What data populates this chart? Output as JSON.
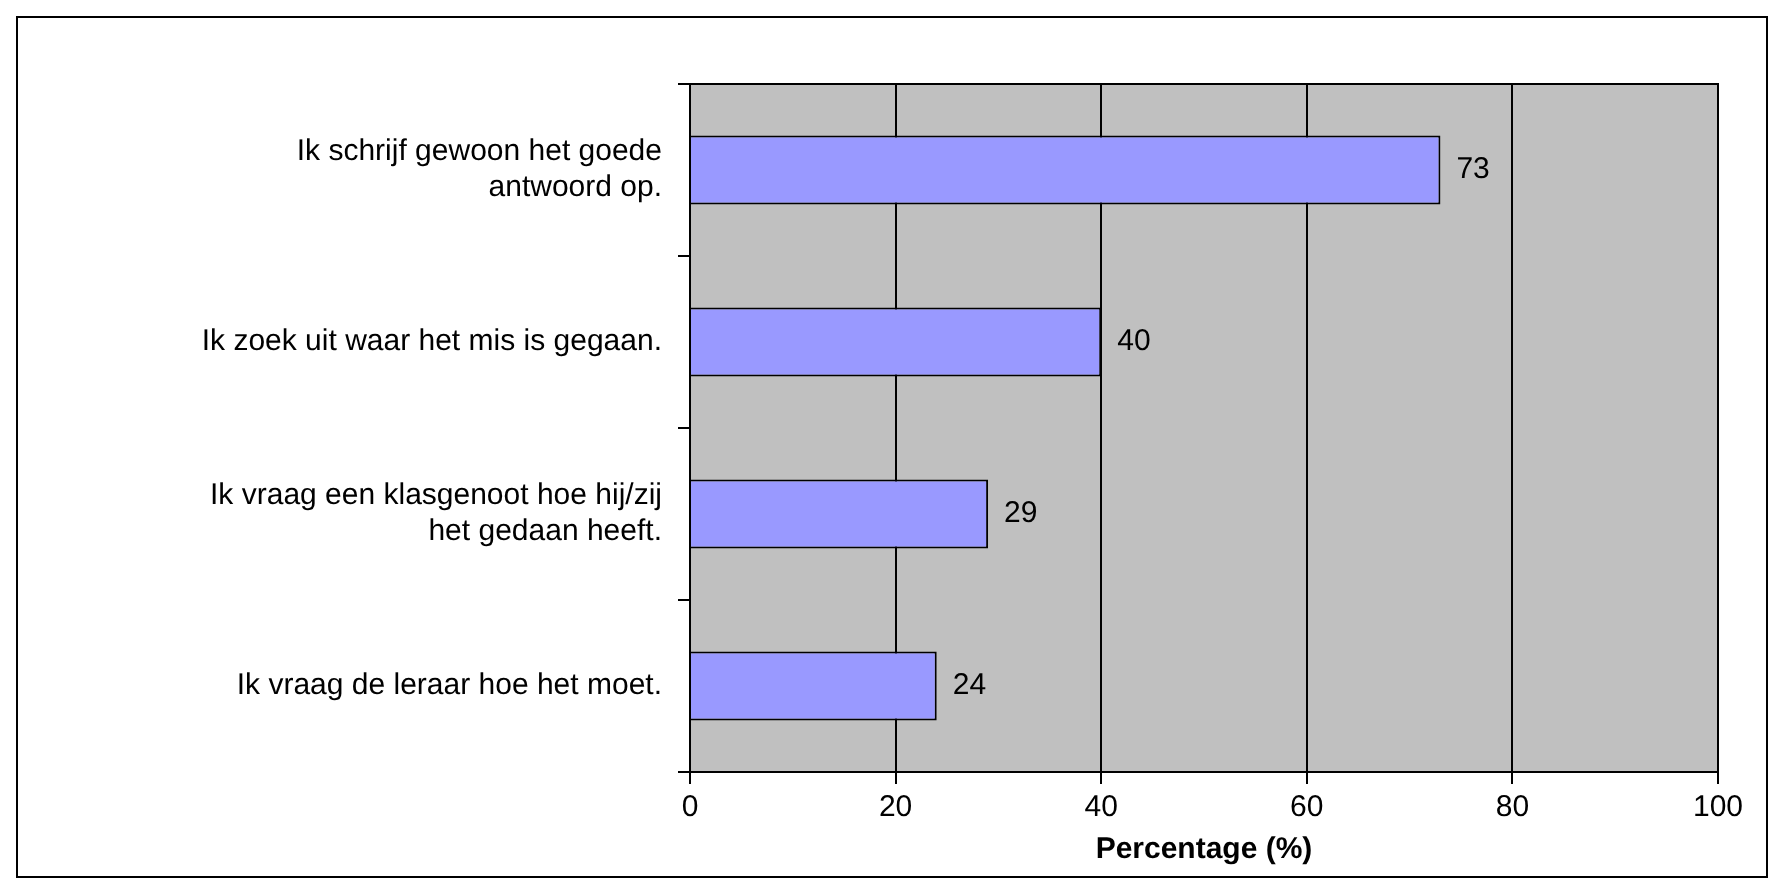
{
  "chart_data": {
    "type": "bar",
    "orientation": "horizontal",
    "xlabel": "Percentage (%)",
    "categories": [
      "Ik schrijf gewoon het goede antwoord op.",
      "Ik zoek uit waar het mis is gegaan.",
      "Ik vraag een klasgenoot hoe hij/zij het gedaan heeft.",
      "Ik vraag de leraar hoe het moet."
    ],
    "values": [
      73,
      40,
      29,
      24
    ],
    "color": "#9999ff",
    "xlim": [
      0,
      100
    ],
    "xticks": [
      0,
      20,
      40,
      60,
      80,
      100
    ],
    "grid": "x",
    "legend": false,
    "data_labels": true
  }
}
